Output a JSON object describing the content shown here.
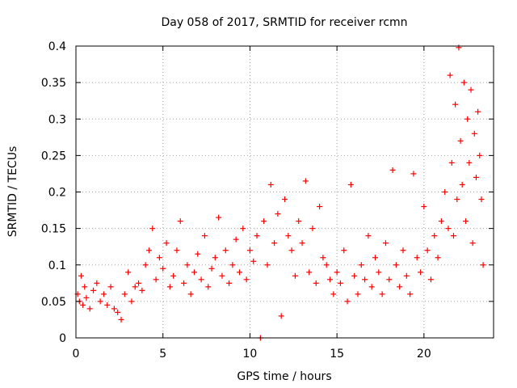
{
  "chart_data": {
    "type": "scatter",
    "title": "Day 058 of 2017, SRMTID for receiver rcmn",
    "xlabel": "GPS time / hours",
    "ylabel": "SRMTID / TECUs",
    "xlim": [
      0,
      24
    ],
    "ylim": [
      0,
      0.4
    ],
    "xticks": [
      0,
      5,
      10,
      15,
      20
    ],
    "xtick_labels": [
      "0",
      "5",
      "10",
      "15",
      "20"
    ],
    "yticks": [
      0,
      0.05,
      0.1,
      0.15,
      0.2,
      0.25,
      0.3,
      0.35,
      0.4
    ],
    "ytick_labels": [
      "0",
      "0.05",
      "0.1",
      "0.15",
      "0.2",
      "0.25",
      "0.3",
      "0.35",
      "0.4"
    ],
    "grid": true,
    "marker": "plus",
    "color": "#ff0000",
    "series": [
      {
        "name": "SRMTID",
        "points": [
          [
            0.1,
            0.06
          ],
          [
            0.2,
            0.05
          ],
          [
            0.3,
            0.085
          ],
          [
            0.4,
            0.045
          ],
          [
            0.5,
            0.07
          ],
          [
            0.6,
            0.055
          ],
          [
            0.8,
            0.04
          ],
          [
            1.0,
            0.065
          ],
          [
            1.2,
            0.075
          ],
          [
            1.4,
            0.05
          ],
          [
            1.6,
            0.06
          ],
          [
            1.8,
            0.045
          ],
          [
            2.0,
            0.07
          ],
          [
            2.2,
            0.04
          ],
          [
            2.4,
            0.035
          ],
          [
            2.6,
            0.025
          ],
          [
            2.8,
            0.06
          ],
          [
            3.0,
            0.09
          ],
          [
            3.2,
            0.05
          ],
          [
            3.4,
            0.07
          ],
          [
            3.6,
            0.075
          ],
          [
            3.8,
            0.065
          ],
          [
            4.0,
            0.1
          ],
          [
            4.2,
            0.12
          ],
          [
            4.4,
            0.15
          ],
          [
            4.6,
            0.08
          ],
          [
            4.8,
            0.11
          ],
          [
            5.0,
            0.095
          ],
          [
            5.2,
            0.13
          ],
          [
            5.4,
            0.07
          ],
          [
            5.6,
            0.085
          ],
          [
            5.8,
            0.12
          ],
          [
            6.0,
            0.16
          ],
          [
            6.2,
            0.075
          ],
          [
            6.4,
            0.1
          ],
          [
            6.6,
            0.06
          ],
          [
            6.8,
            0.09
          ],
          [
            7.0,
            0.115
          ],
          [
            7.2,
            0.08
          ],
          [
            7.4,
            0.14
          ],
          [
            7.6,
            0.07
          ],
          [
            7.8,
            0.095
          ],
          [
            8.0,
            0.11
          ],
          [
            8.2,
            0.165
          ],
          [
            8.4,
            0.085
          ],
          [
            8.6,
            0.12
          ],
          [
            8.8,
            0.075
          ],
          [
            9.0,
            0.1
          ],
          [
            9.2,
            0.135
          ],
          [
            9.4,
            0.09
          ],
          [
            9.6,
            0.15
          ],
          [
            9.8,
            0.08
          ],
          [
            10.0,
            0.12
          ],
          [
            10.2,
            0.105
          ],
          [
            10.4,
            0.14
          ],
          [
            10.6,
            0.0
          ],
          [
            10.8,
            0.16
          ],
          [
            11.0,
            0.1
          ],
          [
            11.2,
            0.21
          ],
          [
            11.4,
            0.13
          ],
          [
            11.6,
            0.17
          ],
          [
            11.8,
            0.03
          ],
          [
            12.0,
            0.19
          ],
          [
            12.2,
            0.14
          ],
          [
            12.4,
            0.12
          ],
          [
            12.6,
            0.085
          ],
          [
            12.8,
            0.16
          ],
          [
            13.0,
            0.13
          ],
          [
            13.2,
            0.215
          ],
          [
            13.4,
            0.09
          ],
          [
            13.6,
            0.15
          ],
          [
            13.8,
            0.075
          ],
          [
            14.0,
            0.18
          ],
          [
            14.2,
            0.11
          ],
          [
            14.4,
            0.1
          ],
          [
            14.6,
            0.08
          ],
          [
            14.8,
            0.06
          ],
          [
            15.0,
            0.09
          ],
          [
            15.2,
            0.075
          ],
          [
            15.4,
            0.12
          ],
          [
            15.6,
            0.05
          ],
          [
            15.8,
            0.21
          ],
          [
            16.0,
            0.085
          ],
          [
            16.2,
            0.06
          ],
          [
            16.4,
            0.1
          ],
          [
            16.6,
            0.08
          ],
          [
            16.8,
            0.14
          ],
          [
            17.0,
            0.07
          ],
          [
            17.2,
            0.11
          ],
          [
            17.4,
            0.09
          ],
          [
            17.6,
            0.06
          ],
          [
            17.8,
            0.13
          ],
          [
            18.0,
            0.08
          ],
          [
            18.2,
            0.23
          ],
          [
            18.4,
            0.1
          ],
          [
            18.6,
            0.07
          ],
          [
            18.8,
            0.12
          ],
          [
            19.0,
            0.085
          ],
          [
            19.2,
            0.06
          ],
          [
            19.4,
            0.225
          ],
          [
            19.6,
            0.11
          ],
          [
            19.8,
            0.09
          ],
          [
            20.0,
            0.18
          ],
          [
            20.2,
            0.12
          ],
          [
            20.4,
            0.08
          ],
          [
            20.6,
            0.14
          ],
          [
            20.8,
            0.11
          ],
          [
            21.0,
            0.16
          ],
          [
            21.2,
            0.2
          ],
          [
            21.4,
            0.15
          ],
          [
            21.5,
            0.36
          ],
          [
            21.6,
            0.24
          ],
          [
            21.7,
            0.14
          ],
          [
            21.8,
            0.32
          ],
          [
            21.9,
            0.19
          ],
          [
            22.0,
            0.398
          ],
          [
            22.1,
            0.27
          ],
          [
            22.2,
            0.21
          ],
          [
            22.3,
            0.35
          ],
          [
            22.4,
            0.16
          ],
          [
            22.5,
            0.3
          ],
          [
            22.6,
            0.24
          ],
          [
            22.7,
            0.34
          ],
          [
            22.8,
            0.13
          ],
          [
            22.9,
            0.28
          ],
          [
            23.0,
            0.22
          ],
          [
            23.1,
            0.31
          ],
          [
            23.2,
            0.25
          ],
          [
            23.3,
            0.19
          ],
          [
            23.4,
            0.1
          ]
        ]
      }
    ]
  }
}
